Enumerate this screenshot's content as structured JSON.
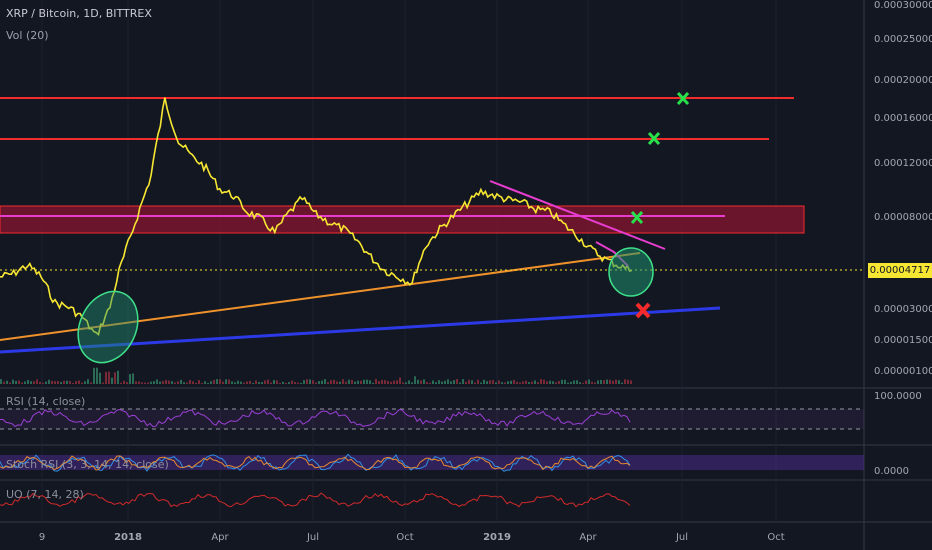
{
  "header": {
    "title": "XRP / Bitcoin, 1D, BITTREX",
    "volume_label": "Vol (20)"
  },
  "price_tag": "0.00004717",
  "indicators": {
    "rsi_label": "RSI (14, close)",
    "stoch_label": "Stoch RSI (3, 3, 14, 14, close)",
    "uo_label": "UO (7, 14, 28)",
    "rsi_axis": "100.0000",
    "stoch_axis": "0.0000"
  },
  "colors": {
    "background": "#131722",
    "price_line": "#f7e733",
    "resistance": "#f22c2c",
    "trend_orange": "#f0922b",
    "trend_blue": "#2b3ae6",
    "trend_magenta": "#e63dcf",
    "zone_fill": "#8a1530",
    "buy_mark": "#28e04a",
    "sell_mark": "#f52a2a",
    "ellipse": "#1e8f6e"
  },
  "chart_data": {
    "type": "line",
    "title": "XRP / Bitcoin, 1D, BITTREX",
    "y_ticks": [
      "0.00030000",
      "0.00025000",
      "0.00020000",
      "0.00016000",
      "0.00012000",
      "0.00008000",
      "0.00004717",
      "0.00003000",
      "0.00001500",
      "0.00000100"
    ],
    "x_ticks": [
      "9",
      "2018",
      "Apr",
      "Jul",
      "Oct",
      "2019",
      "Apr",
      "Jul",
      "Oct"
    ],
    "series": [
      {
        "values": [
          4.4e-05,
          4.55e-05,
          5e-05,
          4.4e-05,
          3.2e-05,
          3e-05,
          2.5e-05,
          1.6e-05,
          3e-05,
          5.5e-05,
          8e-05,
          0.00011,
          0.00018,
          0.00014,
          0.000125,
          0.000115,
          0.0001,
          9.5e-05,
          8.3e-05,
          7.8e-05,
          7e-05,
          8.2e-05,
          9.3e-05,
          8.1e-05,
          7.6e-05,
          7.2e-05,
          6.5e-05,
          5.5e-05,
          4.7e-05,
          4.4e-05,
          4.1e-05,
          6.2e-05,
          7.2e-05,
          8e-05,
          8.9e-05,
          9.8e-05,
          9.5e-05,
          9.2e-05,
          9e-05,
          8.5e-05,
          8.3e-05,
          7.5e-05,
          6.8e-05,
          6e-05,
          5.4e-05,
          5e-05,
          4.7e-05
        ]
      }
    ],
    "annotations": {
      "resistance_levels": [
        0.00018,
        0.00014
      ],
      "zone": [
        6.7e-05,
        8.8e-05
      ],
      "zone_midline": 7.8e-05,
      "current_price": 4.717e-05,
      "buy_targets": [
        0.00018,
        0.00014,
        7.8e-05
      ],
      "stop_target": 2.6e-05
    }
  }
}
